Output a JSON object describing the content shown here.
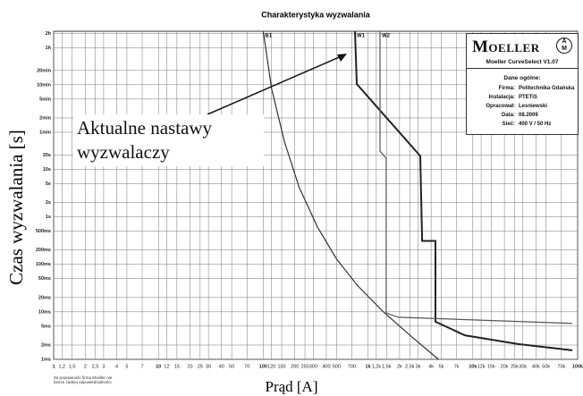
{
  "chart_data": {
    "type": "line",
    "title": "Charakterystyka wyzwalania",
    "xlabel": "Prąd [A]",
    "ylabel": "Czas wyzwalania [s]",
    "xscale": "log",
    "yscale": "log",
    "grid": true,
    "xlim": [
      1,
      100000
    ],
    "ylim": [
      0.001,
      8000
    ],
    "xticks": [
      1,
      {
        "value": 1.2,
        "label": "1,2"
      },
      {
        "value": 1.5,
        "label": "1,5"
      },
      2,
      {
        "value": 2.5,
        "label": "2,5"
      },
      3,
      4,
      5,
      7,
      10,
      12,
      15,
      20,
      25,
      30,
      40,
      50,
      70,
      100,
      120,
      150,
      200,
      250,
      300,
      400,
      500,
      700,
      {
        "value": 1000,
        "label": "1k"
      },
      {
        "value": 1200,
        "label": "1,2k"
      },
      {
        "value": 1500,
        "label": "1,5k"
      },
      {
        "value": 2000,
        "label": "2k"
      },
      {
        "value": 2500,
        "label": "2,5k"
      },
      {
        "value": 3000,
        "label": "3k"
      },
      {
        "value": 4000,
        "label": "4k"
      },
      {
        "value": 5000,
        "label": "5k"
      },
      {
        "value": 7000,
        "label": "7k"
      },
      {
        "value": 10000,
        "label": "10k"
      },
      {
        "value": 12000,
        "label": "12k"
      },
      {
        "value": 15000,
        "label": "15k"
      },
      {
        "value": 20000,
        "label": "20k"
      },
      {
        "value": 25000,
        "label": "25k"
      },
      {
        "value": 30000,
        "label": "30k"
      },
      {
        "value": 40000,
        "label": "40k"
      },
      {
        "value": 50000,
        "label": "50k"
      },
      {
        "value": 70000,
        "label": "70k"
      },
      {
        "value": 100000,
        "label": "100k"
      }
    ],
    "yticks": [
      {
        "value": 7200,
        "label": "2h"
      },
      {
        "value": 3600,
        "label": "1h"
      },
      {
        "value": 1200,
        "label": "20min"
      },
      {
        "value": 600,
        "label": "10min"
      },
      {
        "value": 300,
        "label": "5min"
      },
      {
        "value": 120,
        "label": "2min"
      },
      {
        "value": 60,
        "label": "1min"
      },
      {
        "value": 20,
        "label": "20s"
      },
      {
        "value": 10,
        "label": "10s"
      },
      {
        "value": 5,
        "label": "5s"
      },
      {
        "value": 2,
        "label": "2s"
      },
      {
        "value": 1,
        "label": "1s"
      },
      {
        "value": 0.5,
        "label": "500ms"
      },
      {
        "value": 0.2,
        "label": "200ms"
      },
      {
        "value": 0.1,
        "label": "100ms"
      },
      {
        "value": 0.05,
        "label": "50ms"
      },
      {
        "value": 0.02,
        "label": "20ms"
      },
      {
        "value": 0.01,
        "label": "10ms"
      },
      {
        "value": 0.005,
        "label": "5ms"
      },
      {
        "value": 0.002,
        "label": "2ms"
      },
      {
        "value": 0.001,
        "label": "1ms"
      }
    ],
    "series": [
      {
        "name": "B1",
        "color": "#333333",
        "x": [
          100,
          120,
          160,
          220,
          330,
          500,
          800,
          1400,
          2600,
          4700
        ],
        "values": [
          8000,
          500,
          37,
          4.2,
          0.6,
          0.13,
          0.035,
          0.01,
          0.003,
          0.001
        ]
      },
      {
        "name": "W1",
        "color": "#222222",
        "x": [
          750,
          780,
          3150,
          3280,
          4400,
          4400,
          8400,
          27000,
          89000
        ],
        "values": [
          8000,
          620,
          19,
          0.31,
          0.31,
          0.0062,
          0.0032,
          0.0021,
          0.00155
        ]
      },
      {
        "name": "W2",
        "color": "#555555",
        "x": [
          1300,
          1300,
          1490,
          1490,
          1930,
          89000
        ],
        "values": [
          8000,
          24,
          17,
          0.0095,
          0.0077,
          0.0057
        ]
      }
    ],
    "annotation": "Aktualne nastawy wyzwalaczy",
    "info": {
      "brand": "Moeller",
      "version": "Moeller CurveSelect  V1.07",
      "heading": "Dane ogólne:",
      "rows": [
        [
          "Firma:",
          "Politechnika Gdańska"
        ],
        [
          "Instalacja:",
          "PTETiS"
        ],
        [
          "Opracował:",
          "Lesniewski"
        ],
        [
          "Data:",
          "08.2009"
        ],
        [
          "Sieć:",
          "400 V / 50 Hz"
        ]
      ]
    },
    "footnote": "Za poprawność firma Moeller nie bierze żadnej odpowiedzialności."
  }
}
